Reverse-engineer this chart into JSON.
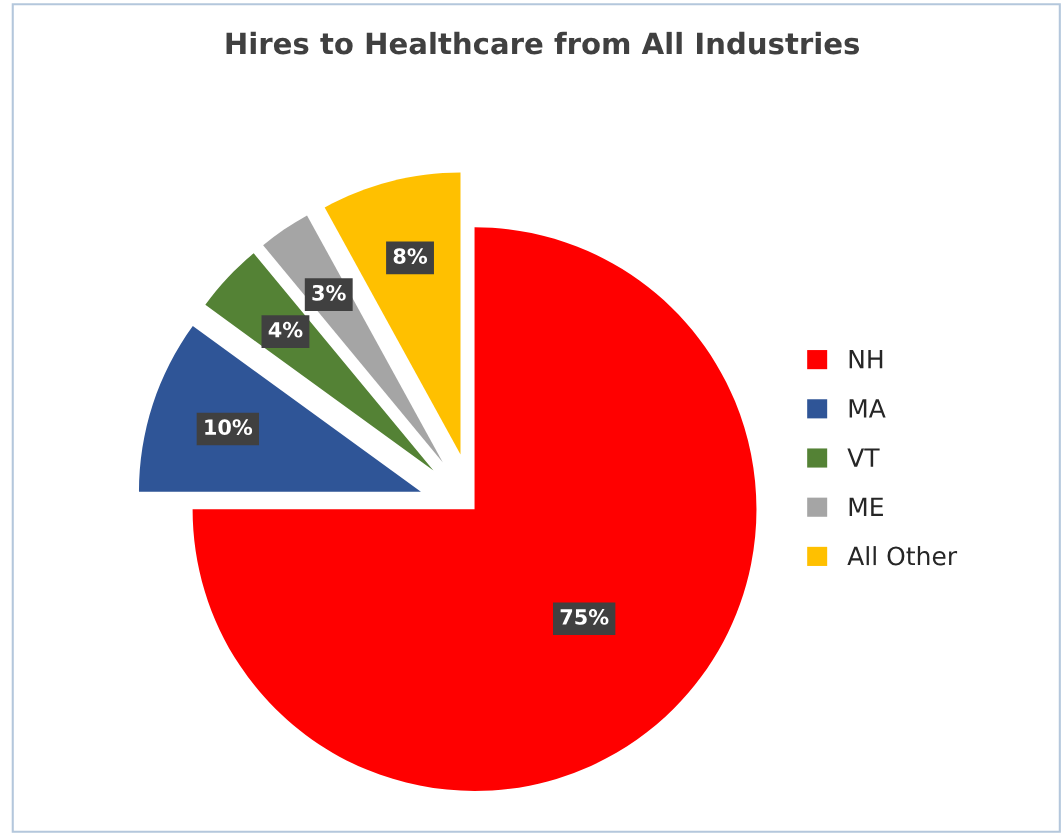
{
  "chart_data": {
    "type": "pie",
    "title": "Hires to Healthcare from All Industries",
    "categories": [
      "NH",
      "MA",
      "VT",
      "ME",
      "All Other"
    ],
    "values": [
      75,
      10,
      4,
      3,
      8
    ],
    "colors": [
      "#ff0000",
      "#2f5597",
      "#548235",
      "#a5a5a5",
      "#ffc000"
    ],
    "value_labels": [
      "75%",
      "10%",
      "4%",
      "3%",
      "8%"
    ],
    "legend": "right"
  }
}
